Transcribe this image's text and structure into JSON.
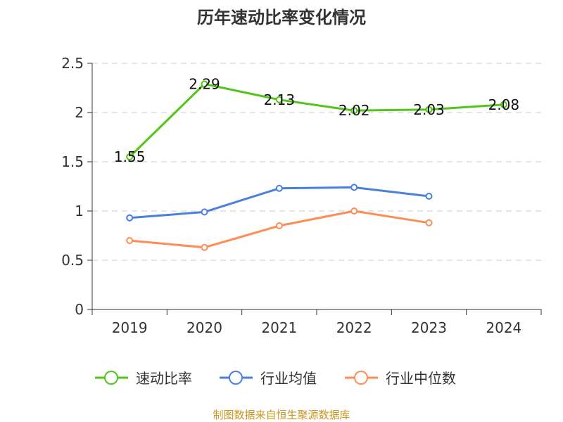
{
  "chart_data": {
    "type": "line",
    "title": "历年速动比率变化情况",
    "categories": [
      "2019",
      "2020",
      "2021",
      "2022",
      "2023",
      "2024"
    ],
    "ylim": [
      0,
      2.5
    ],
    "yticks": [
      "0",
      "0.5",
      "1",
      "1.5",
      "2",
      "2.5"
    ],
    "grid": true,
    "legend_position": "bottom",
    "series": [
      {
        "name": "速动比率",
        "color": "#52c41a",
        "values": [
          1.55,
          2.29,
          2.13,
          2.02,
          2.03,
          2.08
        ],
        "labels": [
          "1.55",
          "2.29",
          "2.13",
          "2.02",
          "2.03",
          "2.08"
        ]
      },
      {
        "name": "行业均值",
        "color": "#4a7fe0",
        "values": [
          0.93,
          0.99,
          1.23,
          1.24,
          1.15,
          null
        ]
      },
      {
        "name": "行业中位数",
        "color": "#ff8c55",
        "values": [
          0.7,
          0.63,
          0.85,
          1.0,
          0.88,
          null
        ]
      }
    ]
  },
  "source": "制图数据来自恒生聚源数据库"
}
